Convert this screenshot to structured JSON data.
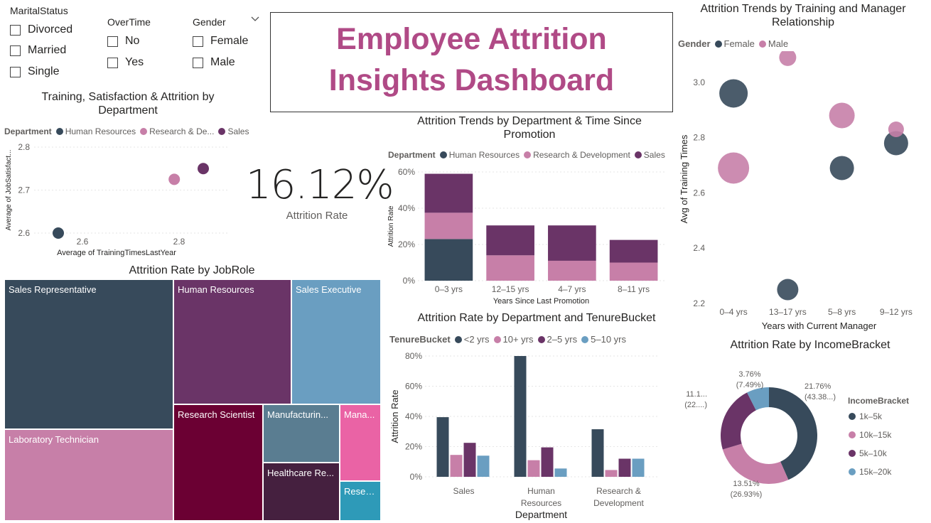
{
  "filters": {
    "marital": {
      "title": "MaritalStatus",
      "options": [
        "Divorced",
        "Married",
        "Single"
      ]
    },
    "overtime": {
      "title": "OverTime",
      "options": [
        "No",
        "Yes"
      ]
    },
    "gender": {
      "title": "Gender",
      "options": [
        "Female",
        "Male"
      ]
    }
  },
  "header": {
    "title_line1": "Employee Attrition",
    "title_line2": "Insights Dashboard"
  },
  "kpi": {
    "value": "16.12%",
    "label": "Attrition Rate"
  },
  "colors": {
    "hr": "#374a5b",
    "rd": "#c77fa8",
    "sales": "#6a3467",
    "female": "#374a5b",
    "male": "#c77fa8",
    "title": "#b04a86"
  },
  "chart_data": [
    {
      "id": "scatter_dept",
      "type": "scatter",
      "title": "Training, Satisfaction & Attrition by Department",
      "legend_title": "Department",
      "xlabel": "Average of TrainingTimesLastYear",
      "ylabel": "Average of JobSatisfact...",
      "x_ticks": [
        "2.6",
        "2.8"
      ],
      "y_ticks": [
        "2.6",
        "2.7",
        "2.8"
      ],
      "xlim": [
        2.5,
        2.9
      ],
      "ylim": [
        2.6,
        2.8
      ],
      "series": [
        {
          "name": "Human Resources",
          "legend_label": "Human Resources",
          "color": "#374a5b",
          "x": 2.55,
          "y": 2.6
        },
        {
          "name": "Research & Development",
          "legend_label": "Research & De...",
          "color": "#c77fa8",
          "x": 2.79,
          "y": 2.725
        },
        {
          "name": "Sales",
          "legend_label": "Sales",
          "color": "#6a3467",
          "x": 2.85,
          "y": 2.75
        }
      ]
    },
    {
      "id": "promo_bar",
      "type": "bar",
      "title": "Attrition Trends by Department & Time Since Promotion",
      "legend_title": "Department",
      "xlabel": "Years Since Last Promotion",
      "ylabel": "Attrition Rate",
      "categories": [
        "0–3 yrs",
        "12–15 yrs",
        "4–7 yrs",
        "8–11 yrs"
      ],
      "y_ticks": [
        "0%",
        "20%",
        "40%",
        "60%"
      ],
      "ylim": [
        0,
        60
      ],
      "series": [
        {
          "name": "Human Resources",
          "color": "#374a5b",
          "values": [
            23,
            0,
            0,
            0
          ]
        },
        {
          "name": "Research & Development",
          "color": "#c77fa8",
          "values": [
            14.5,
            14,
            11,
            10
          ]
        },
        {
          "name": "Sales",
          "color": "#6a3467",
          "values": [
            21.5,
            16.5,
            19.5,
            12.5
          ]
        }
      ]
    },
    {
      "id": "tenure_bar",
      "type": "bar",
      "title": "Attrition Rate by Department and TenureBucket",
      "legend_title": "TenureBucket",
      "xlabel": "Department",
      "ylabel": "Attrition Rate",
      "categories": [
        "Sales",
        "Human Resources",
        "Research & Development"
      ],
      "category_lines": [
        [
          "Sales"
        ],
        [
          "Human",
          "Resources"
        ],
        [
          "Research &",
          "Development"
        ]
      ],
      "y_ticks": [
        "0%",
        "20%",
        "40%",
        "60%",
        "80%"
      ],
      "ylim": [
        0,
        80
      ],
      "series": [
        {
          "name": "<2 yrs",
          "color": "#374a5b",
          "values": [
            39.5,
            80,
            31.5
          ]
        },
        {
          "name": "10+ yrs",
          "color": "#c77fa8",
          "values": [
            14.5,
            11,
            4.5
          ]
        },
        {
          "name": "2–5 yrs",
          "color": "#6a3467",
          "values": [
            22.5,
            19.5,
            12
          ]
        },
        {
          "name": "5–10 yrs",
          "color": "#6a9ec1",
          "values": [
            14,
            5.5,
            12
          ]
        }
      ]
    },
    {
      "id": "manager_bubble",
      "type": "scatter",
      "title": "Attrition Trends by Training and Manager Relationship",
      "legend_title": "Gender",
      "xlabel": "Years with Current Manager",
      "ylabel": "Avg of Training Times",
      "categories": [
        "0–4 yrs",
        "13–17 yrs",
        "5–8 yrs",
        "9–12 yrs"
      ],
      "y_ticks": [
        "2.2",
        "2.4",
        "2.6",
        "2.8",
        "3.0"
      ],
      "ylim": [
        2.2,
        3.1
      ],
      "series": [
        {
          "name": "Female",
          "color": "#374a5b",
          "points": [
            {
              "x": "0–4 yrs",
              "y": 2.96,
              "size": 20
            },
            {
              "x": "13–17 yrs",
              "y": 2.25,
              "size": 15
            },
            {
              "x": "5–8 yrs",
              "y": 2.69,
              "size": 17
            },
            {
              "x": "9–12 yrs",
              "y": 2.78,
              "size": 17
            }
          ]
        },
        {
          "name": "Male",
          "color": "#c77fa8",
          "points": [
            {
              "x": "0–4 yrs",
              "y": 2.69,
              "size": 22
            },
            {
              "x": "13–17 yrs",
              "y": 3.09,
              "size": 12
            },
            {
              "x": "5–8 yrs",
              "y": 2.88,
              "size": 18
            },
            {
              "x": "9–12 yrs",
              "y": 2.83,
              "size": 11
            }
          ]
        }
      ]
    },
    {
      "id": "income_donut",
      "type": "pie",
      "title": "Attrition Rate by IncomeBracket",
      "legend_title": "IncomeBracket",
      "slices": [
        {
          "name": "1k–5k",
          "value": 21.76,
          "share": "43.38...",
          "label_line1": "21.76%",
          "label_line2": "(43.38...)",
          "color": "#374a5b"
        },
        {
          "name": "10k–15k",
          "value": 13.51,
          "share": "26.93%",
          "label_line1": "13.51%",
          "label_line2": "(26.93%)",
          "color": "#c77fa8"
        },
        {
          "name": "5k–10k",
          "value": 11.1,
          "share": "22....",
          "label_line1": "11.1...",
          "label_line2": "(22....)",
          "color": "#6a3467"
        },
        {
          "name": "15k–20k",
          "value": 3.76,
          "share": "7.49%",
          "label_line1": "3.76%",
          "label_line2": "(7.49%)",
          "color": "#6a9ec1"
        }
      ]
    },
    {
      "id": "jobrole_treemap",
      "type": "treemap",
      "title": "Attrition Rate by JobRole",
      "items": [
        {
          "label": "Sales Representative",
          "color": "#374a5b"
        },
        {
          "label": "Laboratory Technician",
          "color": "#c77fa8"
        },
        {
          "label": "Human Resources",
          "color": "#6a3467"
        },
        {
          "label": "Sales Executive",
          "color": "#6a9ec1"
        },
        {
          "label": "Research Scientist",
          "color": "#6b0033"
        },
        {
          "label": "Manufacturin...",
          "color": "#5a7d91"
        },
        {
          "label": "Healthcare Re...",
          "color": "#45203f"
        },
        {
          "label": "Mana...",
          "color": "#ea63a5"
        },
        {
          "label": "Resea...",
          "color": "#2e9ab8"
        }
      ]
    }
  ]
}
